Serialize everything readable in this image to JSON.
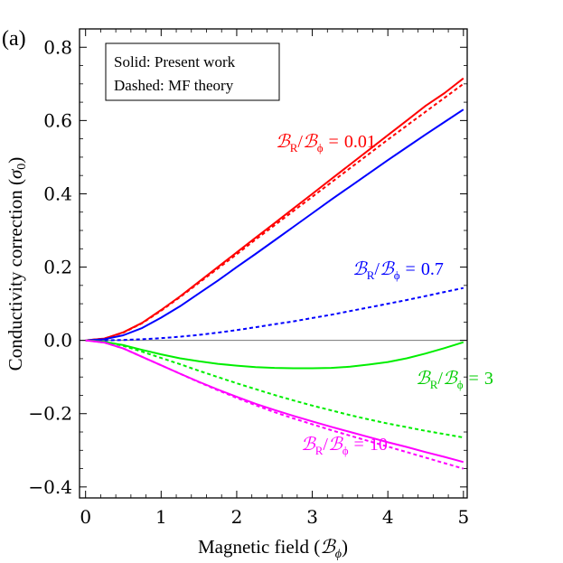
{
  "chart_data": {
    "type": "line",
    "panel_label": "(a)",
    "xlabel": "Magnetic field (ℬϕ)",
    "xlabel_main": "Magnetic field (",
    "xlabel_symbol": "ℬ",
    "xlabel_sub": "ϕ",
    "xlabel_close": ")",
    "ylabel": "Conductivity correction (σ₀)",
    "ylabel_main": "Conductivity correction (",
    "ylabel_symbol": "σ",
    "ylabel_sub": "0",
    "ylabel_close": ")",
    "xlim": [
      -0.08,
      5.05
    ],
    "ylim": [
      -0.43,
      0.85
    ],
    "xticks": [
      0,
      1,
      2,
      3,
      4,
      5
    ],
    "xtick_labels": [
      "0",
      "1",
      "2",
      "3",
      "4",
      "5"
    ],
    "yticks": [
      -0.4,
      -0.2,
      0.0,
      0.2,
      0.4,
      0.6,
      0.8
    ],
    "ytick_labels": [
      "−0.4",
      "−0.2",
      "0.0",
      "0.2",
      "0.4",
      "0.6",
      "0.8"
    ],
    "legend": {
      "position": "top-left",
      "line1": "Solid: Present work",
      "line2": "Dashed: MF theory"
    },
    "x": [
      0,
      0.25,
      0.5,
      0.75,
      1,
      1.25,
      1.5,
      1.75,
      2,
      2.25,
      2.5,
      2.75,
      3,
      3.25,
      3.5,
      3.75,
      4,
      4.25,
      4.5,
      4.75,
      5
    ],
    "series": [
      {
        "name": "B_R/B_phi = 0.01 (present work)",
        "ratio": "0.01",
        "style": "solid",
        "color": "#ff0000",
        "values": [
          0,
          0.005,
          0.022,
          0.048,
          0.083,
          0.12,
          0.16,
          0.2,
          0.24,
          0.28,
          0.32,
          0.36,
          0.4,
          0.44,
          0.48,
          0.52,
          0.56,
          0.6,
          0.64,
          0.675,
          0.715
        ]
      },
      {
        "name": "B_R/B_phi = 0.01 (MF theory)",
        "ratio": "0.01",
        "style": "dashed",
        "color": "#ff0000",
        "values": [
          0,
          0.005,
          0.021,
          0.047,
          0.081,
          0.118,
          0.157,
          0.196,
          0.235,
          0.275,
          0.314,
          0.353,
          0.392,
          0.431,
          0.47,
          0.509,
          0.548,
          0.586,
          0.624,
          0.662,
          0.7
        ]
      },
      {
        "name": "B_R/B_phi = 0.7 (present work)",
        "ratio": "0.7",
        "style": "solid",
        "color": "#0000ff",
        "values": [
          0,
          0.003,
          0.014,
          0.034,
          0.062,
          0.093,
          0.128,
          0.163,
          0.2,
          0.236,
          0.273,
          0.31,
          0.347,
          0.384,
          0.42,
          0.456,
          0.492,
          0.527,
          0.562,
          0.596,
          0.63
        ]
      },
      {
        "name": "B_R/B_phi = 0.7 (MF theory)",
        "ratio": "0.7",
        "style": "dashed",
        "color": "#0000ff",
        "values": [
          0,
          0,
          0.001,
          0.003,
          0.006,
          0.01,
          0.015,
          0.021,
          0.028,
          0.036,
          0.044,
          0.052,
          0.061,
          0.07,
          0.08,
          0.09,
          0.1,
          0.11,
          0.121,
          0.132,
          0.143
        ]
      },
      {
        "name": "B_R/B_phi = 3 (present work)",
        "ratio": "3",
        "style": "solid",
        "color": "#00ee00",
        "values": [
          0,
          -0.004,
          -0.013,
          -0.026,
          -0.038,
          -0.049,
          -0.057,
          -0.064,
          -0.069,
          -0.073,
          -0.075,
          -0.076,
          -0.076,
          -0.075,
          -0.072,
          -0.066,
          -0.059,
          -0.049,
          -0.036,
          -0.021,
          -0.005
        ]
      },
      {
        "name": "B_R/B_phi = 3 (MF theory)",
        "ratio": "3",
        "style": "dashed",
        "color": "#00ee00",
        "values": [
          0,
          -0.004,
          -0.015,
          -0.031,
          -0.048,
          -0.065,
          -0.083,
          -0.1,
          -0.117,
          -0.133,
          -0.149,
          -0.164,
          -0.178,
          -0.191,
          -0.204,
          -0.216,
          -0.227,
          -0.237,
          -0.247,
          -0.256,
          -0.265
        ]
      },
      {
        "name": "B_R/B_phi = 10 (present work)",
        "ratio": "10",
        "style": "solid",
        "color": "#ff00ff",
        "values": [
          0,
          -0.006,
          -0.022,
          -0.045,
          -0.068,
          -0.091,
          -0.113,
          -0.134,
          -0.154,
          -0.173,
          -0.19,
          -0.206,
          -0.221,
          -0.236,
          -0.25,
          -0.264,
          -0.278,
          -0.291,
          -0.305,
          -0.318,
          -0.332
        ]
      },
      {
        "name": "B_R/B_phi = 10 (MF theory)",
        "ratio": "10",
        "style": "dashed",
        "color": "#ff00ff",
        "values": [
          0,
          -0.006,
          -0.022,
          -0.045,
          -0.068,
          -0.091,
          -0.114,
          -0.136,
          -0.157,
          -0.177,
          -0.196,
          -0.213,
          -0.229,
          -0.245,
          -0.26,
          -0.275,
          -0.29,
          -0.305,
          -0.32,
          -0.335,
          -0.35
        ]
      }
    ],
    "annotations": [
      {
        "id": "r001",
        "script_symbol": "ℬ",
        "sub_R": "R",
        "slash": "/",
        "sub_phi": "ϕ",
        "equals": "=",
        "ratio": "0.01",
        "color": "#ff0000"
      },
      {
        "id": "r07",
        "script_symbol": "ℬ",
        "sub_R": "R",
        "slash": "/",
        "sub_phi": "ϕ",
        "equals": "=",
        "ratio": "0.7",
        "color": "#0000ff"
      },
      {
        "id": "r3",
        "script_symbol": "ℬ",
        "sub_R": "R",
        "slash": "/",
        "sub_phi": "ϕ",
        "equals": "=",
        "ratio": "3",
        "color": "#00cc00"
      },
      {
        "id": "r10",
        "script_symbol": "ℬ",
        "sub_R": "R",
        "slash": "/",
        "sub_phi": "ϕ",
        "equals": "=",
        "ratio": "10",
        "color": "#ff00ff"
      }
    ]
  }
}
